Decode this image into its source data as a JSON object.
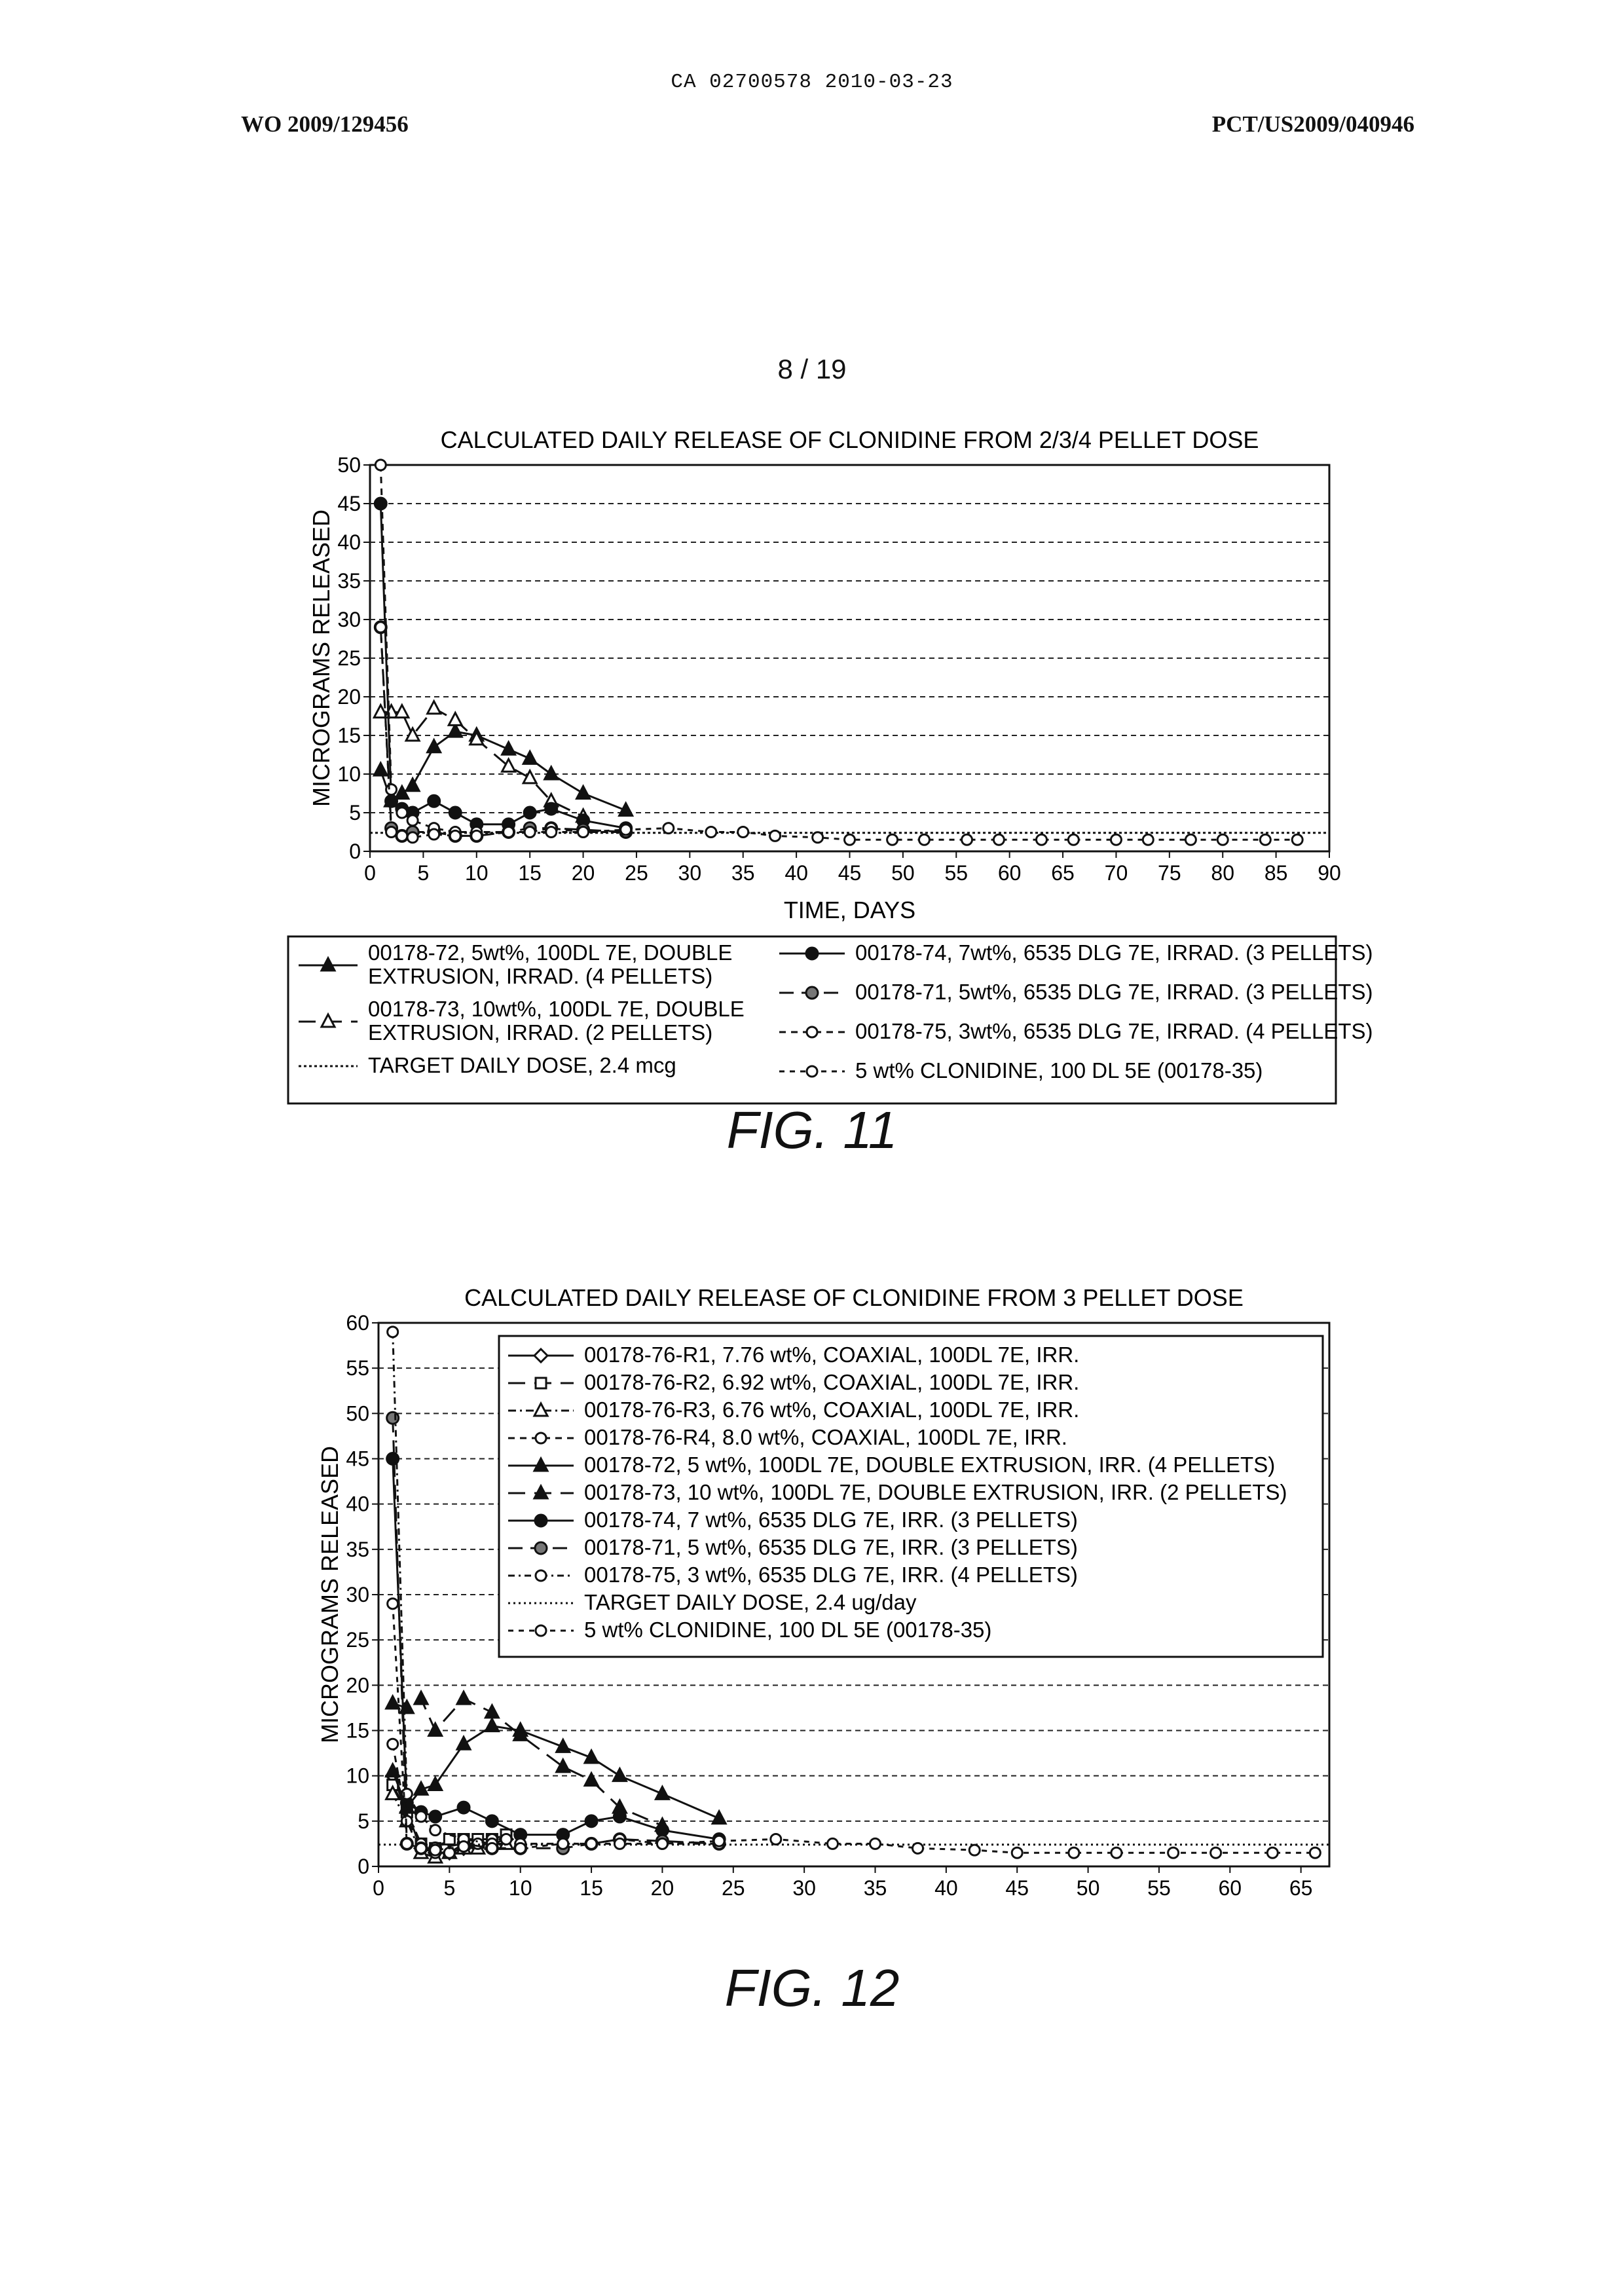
{
  "header": {
    "center": "CA 02700578 2010-03-23",
    "left": "WO 2009/129456",
    "right": "PCT/US2009/040946"
  },
  "page_number": "8 / 19",
  "figures": {
    "fig11": "FIG. 11",
    "fig12": "FIG. 12"
  },
  "chart_data": [
    {
      "type": "line",
      "title": "CALCULATED DAILY RELEASE OF CLONIDINE FROM 2/3/4 PELLET DOSE",
      "xlabel": "TIME, DAYS",
      "ylabel": "MICROGRAMS RELEASED",
      "xlim": [
        0,
        90
      ],
      "ylim": [
        0,
        50
      ],
      "xticks": [
        0,
        5,
        10,
        15,
        20,
        25,
        30,
        35,
        40,
        45,
        50,
        55,
        60,
        65,
        70,
        75,
        80,
        85,
        90
      ],
      "yticks": [
        0,
        5,
        10,
        15,
        20,
        25,
        30,
        35,
        40,
        45,
        50
      ],
      "grid": true,
      "legend": "below",
      "series": [
        {
          "name": "00178-72, 5wt%, 100DL 7E, DOUBLE EXTRUSION, IRRAD. (4 PELLETS)",
          "legend_lines": [
            "00178-72, 5wt%, 100DL 7E, DOUBLE",
            "EXTRUSION, IRRAD. (4 PELLETS)"
          ],
          "dash": "",
          "marker": "tri-filled",
          "x": [
            1,
            2,
            3,
            4,
            6,
            8,
            10,
            13,
            15,
            17,
            20,
            24
          ],
          "y": [
            10.5,
            6.5,
            7.5,
            8.5,
            13.5,
            15.5,
            15,
            13.2,
            12,
            10,
            7.5,
            5.3
          ]
        },
        {
          "name": "00178-73, 10wt%, 100DL 7E, DOUBLE EXTRUSION, IRRAD. (2 PELLETS)",
          "legend_lines": [
            "00178-73, 10wt%, 100DL 7E, DOUBLE",
            "EXTRUSION, IRRAD. (2 PELLETS)"
          ],
          "dash": "26,14",
          "marker": "tri-open",
          "x": [
            1,
            2,
            3,
            4,
            6,
            8,
            10,
            13,
            15,
            17,
            20
          ],
          "y": [
            18,
            18,
            18,
            15,
            18.5,
            17,
            14.5,
            11,
            9.5,
            6.5,
            4.5
          ]
        },
        {
          "name": "TARGET DAILY DOSE, 2.4 mcg",
          "legend_lines": [
            "TARGET DAILY DOSE, 2.4 mcg"
          ],
          "dash": "4,4",
          "marker": "none",
          "x": [
            0,
            90
          ],
          "y": [
            2.4,
            2.4
          ]
        },
        {
          "name": "00178-74, 7wt%, 6535 DLG 7E, IRRAD. (3 PELLETS)",
          "legend_lines": [
            "00178-74, 7wt%, 6535 DLG 7E, IRRAD. (3 PELLETS)"
          ],
          "dash": "",
          "marker": "circle-filled",
          "x": [
            1,
            2,
            3,
            4,
            6,
            8,
            10,
            13,
            15,
            17,
            20,
            24
          ],
          "y": [
            45,
            6.5,
            5.5,
            5,
            6.5,
            5,
            3.5,
            3.5,
            5,
            5.5,
            4,
            3
          ]
        },
        {
          "name": "00178-71, 5wt%, 6535 DLG 7E, IRRAD. (3 PELLETS)",
          "legend_lines": [
            "00178-71, 5wt%, 6535 DLG 7E, IRRAD. (3 PELLETS)"
          ],
          "dash": "22,12",
          "marker": "circle-half",
          "x": [
            1,
            2,
            3,
            4,
            6,
            8,
            10,
            13,
            15,
            17,
            20,
            24
          ],
          "y": [
            29,
            3,
            2,
            2.5,
            2.5,
            2,
            2,
            2.5,
            3,
            3,
            2.8,
            2.5
          ]
        },
        {
          "name": "00178-75, 3wt%, 6535 DLG 7E, IRRAD. (4 PELLETS)",
          "legend_lines": [
            "00178-75, 3wt%, 6535 DLG 7E, IRRAD. (4 PELLETS)"
          ],
          "dash": "10,8",
          "marker": "circle-open",
          "x": [
            1,
            2,
            3,
            4,
            6,
            8,
            10,
            13,
            15,
            17,
            20,
            24
          ],
          "y": [
            50,
            8,
            5,
            4,
            3,
            2.5,
            2.5,
            2.5,
            2.5,
            3,
            2.5,
            2.5
          ]
        },
        {
          "name": "5 wt% CLONIDINE, 100 DL 5E (00178-35)",
          "legend_lines": [
            "5 wt% CLONIDINE, 100 DL 5E (00178-35)"
          ],
          "dash": "8,8",
          "marker": "circle-open",
          "x": [
            1,
            2,
            3,
            4,
            6,
            8,
            10,
            13,
            15,
            17,
            20,
            24,
            28,
            32,
            35,
            38,
            42,
            45,
            49,
            52,
            56,
            59,
            63,
            66,
            70,
            73,
            77,
            80,
            84,
            87
          ],
          "y": [
            29,
            2.5,
            2,
            1.8,
            2.2,
            2,
            2,
            2.5,
            2.5,
            2.5,
            2.5,
            2.8,
            3,
            2.5,
            2.5,
            2,
            1.8,
            1.5,
            1.5,
            1.5,
            1.5,
            1.5,
            1.5,
            1.5,
            1.5,
            1.5,
            1.5,
            1.5,
            1.5,
            1.5
          ]
        }
      ]
    },
    {
      "type": "line",
      "title": "CALCULATED DAILY RELEASE OF CLONIDINE FROM 3 PELLET DOSE",
      "xlabel": "",
      "ylabel": "MICROGRAMS RELEASED",
      "xlim": [
        0,
        67
      ],
      "ylim": [
        0,
        60
      ],
      "xticks": [
        0,
        5,
        10,
        15,
        20,
        25,
        30,
        35,
        40,
        45,
        50,
        55,
        60,
        65
      ],
      "yticks": [
        0,
        5,
        10,
        15,
        20,
        25,
        30,
        35,
        40,
        45,
        50,
        55,
        60
      ],
      "grid": true,
      "legend": "top-right",
      "series": [
        {
          "name": "00178-76-R1, 7.76 wt%, COAXIAL, 100DL 7E, IRR.",
          "dash": "",
          "marker": "diamond-open",
          "x": [
            1,
            2,
            3,
            4,
            5,
            6,
            7,
            8,
            9
          ],
          "y": [
            10,
            6,
            2,
            1.5,
            1.5,
            2,
            2.5,
            2.5,
            3
          ]
        },
        {
          "name": "00178-76-R2, 6.92 wt%, COAXIAL, 100DL 7E, IRR.",
          "dash": "26,14",
          "marker": "square-open",
          "x": [
            1,
            2,
            3,
            4,
            5,
            6,
            7,
            8,
            9
          ],
          "y": [
            9,
            6,
            2.5,
            2,
            3,
            3,
            3,
            3,
            3.5
          ]
        },
        {
          "name": "00178-76-R3, 6.76 wt%, COAXIAL, 100DL 7E, IRR.",
          "dash": "12,6,3,6",
          "marker": "tri-open",
          "x": [
            1,
            2,
            3,
            4,
            5,
            6,
            7,
            8,
            9
          ],
          "y": [
            8,
            5,
            1.5,
            1,
            1.5,
            2,
            2,
            2.5,
            2.5
          ]
        },
        {
          "name": "00178-76-R4, 8.0 wt%, COAXIAL, 100DL 7E, IRR.",
          "dash": "10,8",
          "marker": "circle-open",
          "x": [
            1,
            2,
            3,
            4,
            5,
            6,
            7,
            8,
            9
          ],
          "y": [
            13.5,
            5,
            2.5,
            1.5,
            1.5,
            2.5,
            2.5,
            3,
            3
          ]
        },
        {
          "name": "00178-72, 5 wt%, 100DL 7E, DOUBLE EXTRUSION, IRR. (4 PELLETS)",
          "dash": "",
          "marker": "tri-filled",
          "x": [
            1,
            2,
            3,
            4,
            6,
            8,
            10,
            13,
            15,
            17,
            20,
            24
          ],
          "y": [
            10.5,
            6.5,
            8.5,
            9,
            13.5,
            15.5,
            15,
            13.2,
            12,
            10,
            8,
            5.3
          ]
        },
        {
          "name": "00178-73, 10 wt%, 100DL 7E, DOUBLE EXTRUSION, IRR. (2 PELLETS)",
          "dash": "26,14",
          "marker": "tri-filled",
          "x": [
            1,
            2,
            3,
            4,
            6,
            8,
            10,
            13,
            15,
            17,
            20
          ],
          "y": [
            18,
            17.5,
            18.5,
            15,
            18.5,
            17,
            14.5,
            11,
            9.5,
            6.5,
            4.5
          ]
        },
        {
          "name": "00178-74, 7 wt%, 6535 DLG 7E, IRR. (3 PELLETS)",
          "dash": "",
          "marker": "circle-filled",
          "x": [
            1,
            2,
            3,
            4,
            6,
            8,
            10,
            13,
            15,
            17,
            20,
            24
          ],
          "y": [
            45,
            7,
            6,
            5.5,
            6.5,
            5,
            3.5,
            3.5,
            5,
            5.5,
            4,
            3
          ]
        },
        {
          "name": "00178-71, 5 wt%, 6535 DLG 7E, IRR. (3 PELLETS)",
          "dash": "22,12",
          "marker": "circle-half",
          "x": [
            1,
            2,
            3,
            4,
            6,
            8,
            10,
            13,
            15,
            17,
            20,
            24
          ],
          "y": [
            49.5,
            2.5,
            2,
            2,
            2.5,
            2,
            2,
            2,
            2.5,
            3,
            2.8,
            2.5
          ]
        },
        {
          "name": "00178-75, 3 wt%, 6535 DLG 7E, IRR. (4 PELLETS)",
          "dash": "10,6,3,6",
          "marker": "circle-open",
          "x": [
            1,
            2,
            3,
            4,
            6,
            8,
            10,
            13,
            15,
            17,
            20,
            24
          ],
          "y": [
            59,
            8,
            5.5,
            4,
            3,
            2.5,
            2.5,
            2.5,
            2.5,
            3,
            2.5,
            2.5
          ]
        },
        {
          "name": "TARGET DAILY DOSE, 2.4 ug/day",
          "dash": "3,5",
          "marker": "none",
          "x": [
            0,
            67
          ],
          "y": [
            2.4,
            2.4
          ]
        },
        {
          "name": "5 wt% CLONIDINE, 100 DL 5E (00178-35)",
          "dash": "8,8",
          "marker": "circle-open",
          "x": [
            1,
            2,
            3,
            4,
            6,
            8,
            10,
            13,
            15,
            17,
            20,
            24,
            28,
            32,
            35,
            38,
            42,
            45,
            49,
            52,
            56,
            59,
            63,
            66
          ],
          "y": [
            29,
            2.5,
            2,
            1.8,
            2.2,
            2,
            2,
            2.5,
            2.5,
            2.5,
            2.5,
            2.8,
            3,
            2.5,
            2.5,
            2,
            1.8,
            1.5,
            1.5,
            1.5,
            1.5,
            1.5,
            1.5,
            1.5
          ]
        }
      ]
    }
  ]
}
